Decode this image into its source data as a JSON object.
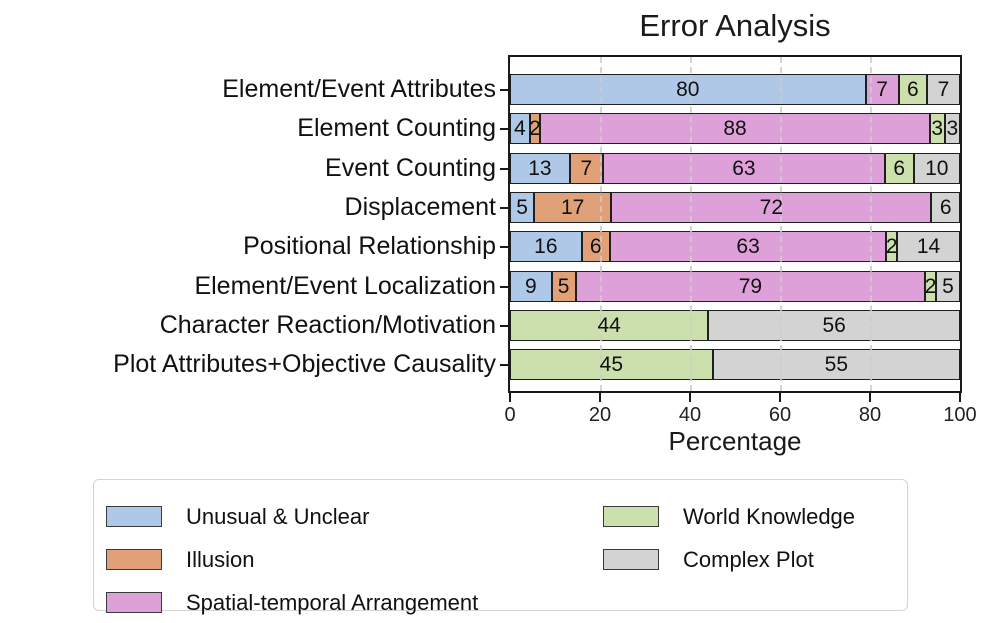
{
  "chart_data": {
    "type": "bar",
    "orientation": "horizontal-stacked",
    "title": "Error Analysis",
    "xlabel": "Percentage",
    "xlim": [
      0,
      100
    ],
    "xticks": [
      0,
      20,
      40,
      60,
      80,
      100
    ],
    "grid": "dashed-vertical-at-20-40-60-80",
    "legend_position": "below-chart, two columns, boxed",
    "categories": [
      "Element/Event Attributes",
      "Element Counting",
      "Event Counting",
      "Displacement",
      "Positional Relationship",
      "Element/Event Localization",
      "Character Reaction/Motivation",
      "Plot Attributes+Objective Causality"
    ],
    "series": [
      {
        "name": "Unusual & Unclear",
        "color": "#afc8e8",
        "values": [
          80,
          4,
          13,
          5,
          16,
          9,
          0,
          0
        ]
      },
      {
        "name": "Illusion",
        "color": "#e0a078",
        "values": [
          0,
          2,
          7,
          17,
          6,
          5,
          0,
          0
        ]
      },
      {
        "name": "Spatial-temporal Arrangement",
        "color": "#dda0d8",
        "values": [
          7,
          88,
          63,
          72,
          63,
          79,
          0,
          0
        ]
      },
      {
        "name": "World Knowledge",
        "color": "#cbe0ac",
        "values": [
          6,
          3,
          6,
          0,
          2,
          2,
          44,
          45
        ]
      },
      {
        "name": "Complex Plot",
        "color": "#d3d3d3",
        "values": [
          7,
          3,
          10,
          6,
          14,
          5,
          56,
          55
        ]
      }
    ],
    "xtick_labels": [
      "0",
      "20",
      "40",
      "60",
      "80",
      "100"
    ],
    "bar_border_color": "#1f1f1f",
    "axis_color": "#1a1a1a"
  },
  "legend_columns": [
    [
      0,
      1,
      2
    ],
    [
      3,
      4
    ]
  ]
}
